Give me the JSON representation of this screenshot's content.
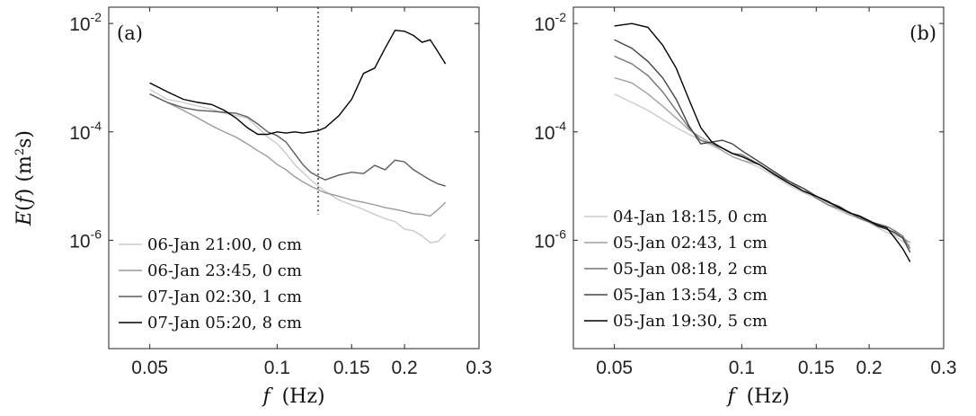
{
  "chart_data": [
    {
      "type": "line",
      "panel_label": "(a)",
      "xscale": "log",
      "yscale": "log",
      "xlim": [
        0.04,
        0.3
      ],
      "ylim": [
        1e-08,
        0.02
      ],
      "xticks": [
        0.05,
        0.1,
        0.15,
        0.2,
        0.3
      ],
      "xtick_labels": [
        "0.05",
        "0.1",
        "0.15",
        "0.2",
        "0.3"
      ],
      "yticks": [
        1e-06,
        0.0001,
        0.01
      ],
      "ytick_base": "10",
      "ytick_exponents": [
        "-6",
        "-4",
        "-2"
      ],
      "xlabel": "f (Hz)",
      "ylabel": "E(f) (m2s)",
      "ylabel_parts": {
        "main": "E(f) (m",
        "sup": "2",
        "tail": "s)"
      },
      "xlabel_parts": {
        "var": "f",
        "rest": "(Hz)"
      },
      "vline_x": 0.125,
      "vline_ymin": 3e-06,
      "grid": false,
      "legend_position": "bottom-left",
      "series": [
        {
          "name": "06-Jan 21:00, 0 cm",
          "color": "#c9c9c9",
          "x": [
            0.05,
            0.055,
            0.06,
            0.065,
            0.07,
            0.075,
            0.08,
            0.085,
            0.09,
            0.095,
            0.1,
            0.105,
            0.11,
            0.115,
            0.12,
            0.125,
            0.13,
            0.14,
            0.15,
            0.16,
            0.17,
            0.18,
            0.19,
            0.2,
            0.21,
            0.22,
            0.23,
            0.24,
            0.25
          ],
          "y": [
            0.0006,
            0.0004,
            0.00035,
            0.0003,
            0.00026,
            0.00022,
            0.0002,
            0.00018,
            0.00012,
            8e-05,
            6e-05,
            4e-05,
            2.5e-05,
            1.8e-05,
            1.3e-05,
            1e-05,
            8e-06,
            5.5e-06,
            4.5e-06,
            3.7e-06,
            3e-06,
            2.5e-06,
            2.2e-06,
            1.6e-06,
            1.5e-06,
            1.2e-06,
            9e-07,
            9.5e-07,
            1.3e-06
          ]
        },
        {
          "name": "06-Jan 23:45, 0 cm",
          "color": "#9a9a9a",
          "x": [
            0.05,
            0.055,
            0.06,
            0.065,
            0.07,
            0.075,
            0.08,
            0.085,
            0.09,
            0.095,
            0.1,
            0.105,
            0.11,
            0.115,
            0.12,
            0.125,
            0.13,
            0.14,
            0.15,
            0.16,
            0.17,
            0.18,
            0.19,
            0.2,
            0.21,
            0.22,
            0.23,
            0.24,
            0.25
          ],
          "y": [
            0.0005,
            0.00035,
            0.00025,
            0.00018,
            0.00013,
            0.0001,
            8e-05,
            6e-05,
            4.5e-05,
            3.5e-05,
            2.5e-05,
            2e-05,
            1.5e-05,
            1.2e-05,
            1e-05,
            8.5e-06,
            7.5e-06,
            6.5e-06,
            5.5e-06,
            5e-06,
            4.5e-06,
            4e-06,
            3.7e-06,
            3.4e-06,
            3.1e-06,
            3e-06,
            2.8e-06,
            3.7e-06,
            5e-06
          ]
        },
        {
          "name": "07-Jan 02:30, 1 cm",
          "color": "#5c5c5c",
          "x": [
            0.05,
            0.055,
            0.06,
            0.065,
            0.07,
            0.075,
            0.08,
            0.085,
            0.09,
            0.095,
            0.1,
            0.105,
            0.11,
            0.115,
            0.12,
            0.125,
            0.13,
            0.14,
            0.15,
            0.16,
            0.17,
            0.18,
            0.19,
            0.2,
            0.21,
            0.22,
            0.23,
            0.24,
            0.25
          ],
          "y": [
            0.0005,
            0.00035,
            0.00028,
            0.00025,
            0.00024,
            0.00023,
            0.00022,
            0.00019,
            0.00014,
            0.0001,
            8.5e-05,
            6.5e-05,
            4e-05,
            2.5e-05,
            1.8e-05,
            1.5e-05,
            1.3e-05,
            1.6e-05,
            1.8e-05,
            1.7e-05,
            2.4e-05,
            2e-05,
            3e-05,
            2.8e-05,
            2e-05,
            1.6e-05,
            1.3e-05,
            1.1e-05,
            1e-05
          ]
        },
        {
          "name": "07-Jan 05:20, 8 cm",
          "color": "#000000",
          "x": [
            0.05,
            0.055,
            0.06,
            0.065,
            0.07,
            0.075,
            0.08,
            0.085,
            0.09,
            0.095,
            0.1,
            0.105,
            0.11,
            0.115,
            0.12,
            0.125,
            0.13,
            0.14,
            0.15,
            0.16,
            0.17,
            0.18,
            0.19,
            0.2,
            0.21,
            0.22,
            0.23,
            0.24,
            0.25
          ],
          "y": [
            0.0008,
            0.00055,
            0.0004,
            0.00035,
            0.00032,
            0.00025,
            0.00018,
            0.00012,
            9e-05,
            9e-05,
            0.0001,
            9.5e-05,
            0.0001,
            9.5e-05,
            0.0001,
            0.000105,
            0.00012,
            0.0002,
            0.0004,
            0.0012,
            0.0015,
            0.0035,
            0.0075,
            0.0072,
            0.006,
            0.0045,
            0.005,
            0.003,
            0.0018
          ]
        }
      ]
    },
    {
      "type": "line",
      "panel_label": "(b)",
      "xscale": "log",
      "yscale": "log",
      "xlim": [
        0.04,
        0.3
      ],
      "ylim": [
        1e-08,
        0.02
      ],
      "xticks": [
        0.05,
        0.1,
        0.15,
        0.2,
        0.3
      ],
      "xtick_labels": [
        "0.05",
        "0.1",
        "0.15",
        "0.2",
        "0.3"
      ],
      "yticks": [
        1e-06,
        0.0001,
        0.01
      ],
      "ytick_base": "10",
      "ytick_exponents": [
        "-6",
        "-4",
        "-2"
      ],
      "xlabel": "f (Hz)",
      "xlabel_parts": {
        "var": "f",
        "rest": "(Hz)"
      },
      "grid": false,
      "legend_position": "bottom-left",
      "series": [
        {
          "name": "04-Jan 18:15, 0 cm",
          "color": "#cccccc",
          "x": [
            0.05,
            0.055,
            0.06,
            0.065,
            0.07,
            0.075,
            0.08,
            0.085,
            0.09,
            0.095,
            0.1,
            0.11,
            0.12,
            0.13,
            0.14,
            0.15,
            0.16,
            0.17,
            0.18,
            0.19,
            0.2,
            0.21,
            0.22,
            0.23,
            0.24,
            0.25
          ],
          "y": [
            0.0005,
            0.00035,
            0.00025,
            0.00017,
            0.00012,
            9e-05,
            7e-05,
            5.5e-05,
            4.5e-05,
            3.5e-05,
            3e-05,
            2.2e-05,
            1.5e-05,
            1e-05,
            7.5e-06,
            6e-06,
            4.5e-06,
            3.5e-06,
            2.9e-06,
            2.5e-06,
            2.1e-06,
            1.7e-06,
            1.4e-06,
            1.2e-06,
            9.5e-07,
            8e-07
          ]
        },
        {
          "name": "05-Jan 02:43, 1 cm",
          "color": "#a0a0a0",
          "x": [
            0.05,
            0.055,
            0.06,
            0.065,
            0.07,
            0.075,
            0.08,
            0.085,
            0.09,
            0.095,
            0.1,
            0.11,
            0.12,
            0.13,
            0.14,
            0.15,
            0.16,
            0.17,
            0.18,
            0.19,
            0.2,
            0.21,
            0.22,
            0.23,
            0.24,
            0.25
          ],
          "y": [
            0.001,
            0.0008,
            0.0005,
            0.0003,
            0.00018,
            0.00011,
            8e-05,
            6e-05,
            4.5e-05,
            3.5e-05,
            3e-05,
            2.5e-05,
            1.7e-05,
            1.2e-05,
            8e-06,
            6.5e-06,
            5e-06,
            3.8e-06,
            3e-06,
            2.5e-06,
            2.2e-06,
            1.9e-06,
            1.6e-06,
            1.3e-06,
            1.1e-06,
            9e-07
          ]
        },
        {
          "name": "05-Jan 08:18, 2 cm",
          "color": "#747474",
          "x": [
            0.05,
            0.055,
            0.06,
            0.065,
            0.07,
            0.075,
            0.08,
            0.085,
            0.09,
            0.095,
            0.1,
            0.11,
            0.12,
            0.13,
            0.14,
            0.15,
            0.16,
            0.17,
            0.18,
            0.19,
            0.2,
            0.21,
            0.22,
            0.23,
            0.24,
            0.25
          ],
          "y": [
            0.0025,
            0.0018,
            0.0011,
            0.00055,
            0.00025,
            0.00012,
            7e-05,
            6e-05,
            5e-05,
            4e-05,
            3.8e-05,
            2.5e-05,
            1.6e-05,
            1.2e-05,
            9e-06,
            6e-06,
            4.5e-06,
            3.8e-06,
            3.3e-06,
            2.5e-06,
            2.2e-06,
            2e-06,
            1.8e-06,
            1.5e-06,
            1.2e-06,
            7e-07
          ]
        },
        {
          "name": "05-Jan 13:54, 3 cm",
          "color": "#444444",
          "x": [
            0.05,
            0.055,
            0.06,
            0.065,
            0.07,
            0.075,
            0.08,
            0.085,
            0.09,
            0.095,
            0.1,
            0.11,
            0.12,
            0.13,
            0.14,
            0.15,
            0.16,
            0.17,
            0.18,
            0.19,
            0.2,
            0.21,
            0.22,
            0.23,
            0.24,
            0.25
          ],
          "y": [
            0.005,
            0.0035,
            0.002,
            0.001,
            0.0004,
            0.00013,
            6e-05,
            6.5e-05,
            7e-05,
            6e-05,
            4.5e-05,
            2.8e-05,
            1.8e-05,
            1.2e-05,
            9e-06,
            6.5e-06,
            5e-06,
            4.2e-06,
            3.2e-06,
            2.7e-06,
            2.2e-06,
            1.8e-06,
            1.6e-06,
            1.4e-06,
            1.1e-06,
            6e-07
          ]
        },
        {
          "name": "05-Jan 19:30, 5 cm",
          "color": "#000000",
          "x": [
            0.05,
            0.055,
            0.06,
            0.065,
            0.07,
            0.075,
            0.08,
            0.085,
            0.09,
            0.095,
            0.1,
            0.11,
            0.12,
            0.13,
            0.14,
            0.15,
            0.16,
            0.17,
            0.18,
            0.19,
            0.2,
            0.21,
            0.22,
            0.23,
            0.24,
            0.25
          ],
          "y": [
            0.009,
            0.01,
            0.0085,
            0.004,
            0.0015,
            0.0004,
            0.00012,
            6.5e-05,
            5e-05,
            4e-05,
            3.5e-05,
            2.5e-05,
            1.6e-05,
            1.1e-05,
            8e-06,
            6.5e-06,
            5.2e-06,
            4e-06,
            3.2e-06,
            2.8e-06,
            2.3e-06,
            1.9e-06,
            1.7e-06,
            1.1e-06,
            7e-07,
            4e-07
          ]
        }
      ]
    }
  ]
}
